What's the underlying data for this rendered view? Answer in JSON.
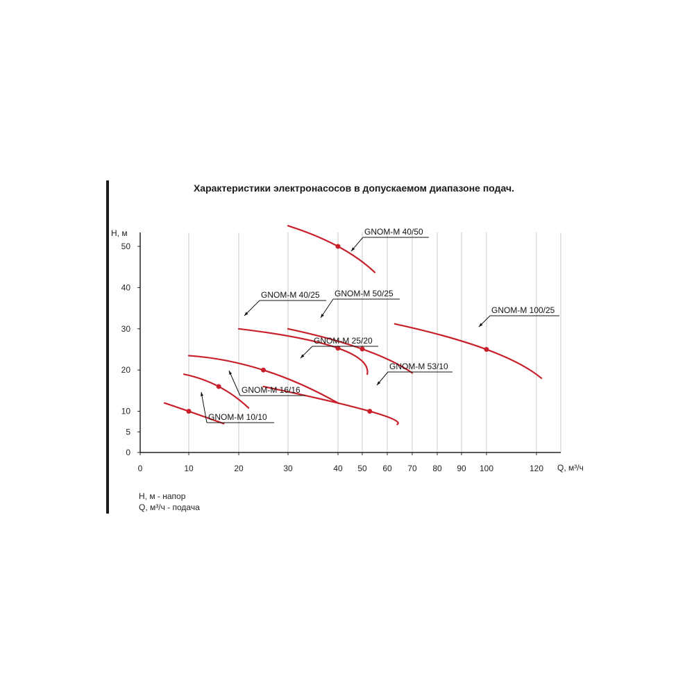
{
  "chart_data": {
    "type": "line",
    "title": "Характеристики электронасосов в допускаемом диапазоне подач.",
    "ylabel": "H, м",
    "xlabel": "Q,  м³/ч",
    "x_ticks": [
      0,
      10,
      20,
      30,
      40,
      50,
      60,
      70,
      80,
      90,
      100,
      120
    ],
    "y_ticks": [
      0,
      5,
      10,
      20,
      30,
      40,
      50
    ],
    "ylim": [
      0,
      57
    ],
    "grid": "vertical",
    "series": [
      {
        "name": "GNOM-M 10/10",
        "points": [
          [
            5,
            12
          ],
          [
            10,
            10
          ],
          [
            17,
            7
          ]
        ],
        "nominal": [
          10,
          10
        ]
      },
      {
        "name": "GNOM-M 16/16",
        "points": [
          [
            9,
            19
          ],
          [
            16,
            16
          ],
          [
            22,
            10.8
          ]
        ],
        "nominal": [
          16,
          16
        ]
      },
      {
        "name": "GNOM-M 25/20",
        "points": [
          [
            10,
            23.5
          ],
          [
            25,
            20
          ],
          [
            40,
            12
          ]
        ],
        "nominal": [
          25,
          20
        ]
      },
      {
        "name": "GNOM-M 40/25",
        "points": [
          [
            20,
            30
          ],
          [
            40,
            25.3
          ],
          [
            52,
            19
          ]
        ],
        "nominal": [
          40,
          25.3
        ]
      },
      {
        "name": "GNOM-M 50/25",
        "points": [
          [
            30,
            30
          ],
          [
            50,
            25.1
          ],
          [
            70,
            19.3
          ]
        ],
        "nominal": [
          50,
          25.1
        ]
      },
      {
        "name": "GNOM-M 53/10",
        "points": [
          [
            25,
            16
          ],
          [
            53,
            10
          ],
          [
            64,
            6.8
          ]
        ],
        "nominal": [
          53,
          10
        ]
      },
      {
        "name": "GNOM-M 40/50",
        "points": [
          [
            30,
            55
          ],
          [
            40,
            50
          ],
          [
            55,
            43.7
          ]
        ],
        "nominal": [
          40,
          50
        ]
      },
      {
        "name": "GNOM-M 100/25",
        "points": [
          [
            63,
            31.2
          ],
          [
            100,
            25
          ],
          [
            122,
            18
          ]
        ],
        "nominal": [
          100,
          25
        ]
      }
    ],
    "colors": {
      "curve": "#c8202a",
      "grid": "#c8c8c8",
      "axis": "#222222"
    }
  },
  "legend": {
    "line1": "H, м - напор",
    "line2": "Q, м³/ч - подача"
  }
}
